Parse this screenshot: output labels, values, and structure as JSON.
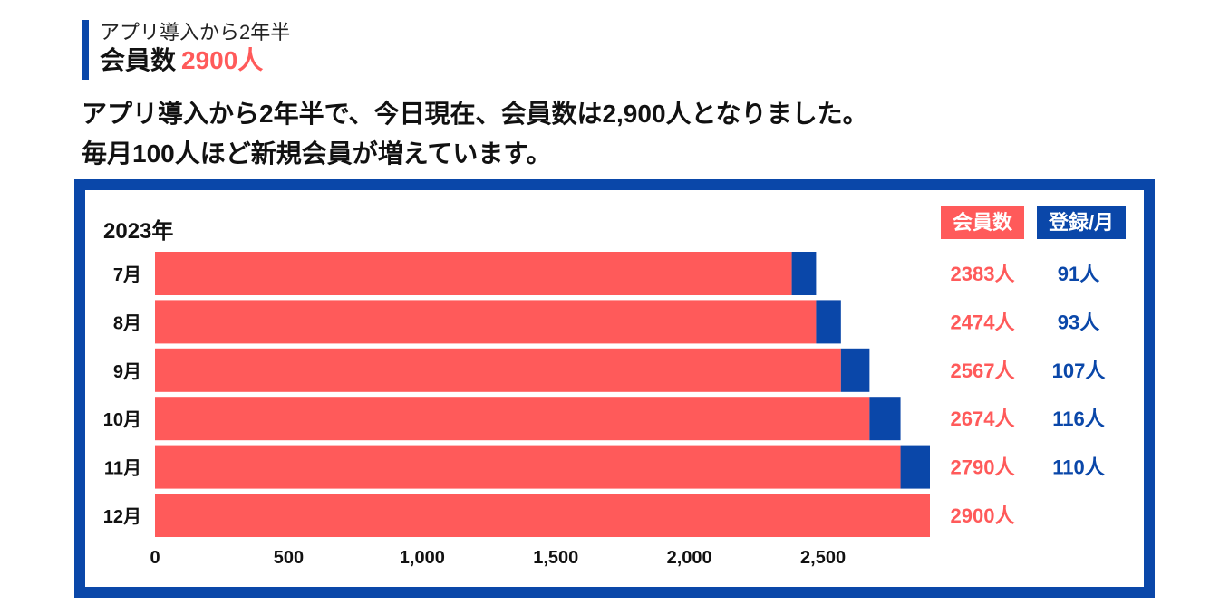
{
  "header": {
    "subtitle": "アプリ導入から2年半",
    "headline_label": "会員数",
    "headline_value": "2900人"
  },
  "lead": {
    "line1": "アプリ導入から2年半で、今日現在、会員数は2,900人となりました。",
    "line2": "毎月100人ほど新規会員が増えています。"
  },
  "colors": {
    "accent_blue": "#0a47a9",
    "members_red": "#ff5a5a"
  },
  "chart_data": {
    "type": "bar",
    "orientation": "horizontal",
    "stacked": true,
    "title": "2023年",
    "categories": [
      "7月",
      "8月",
      "9月",
      "10月",
      "11月",
      "12月"
    ],
    "series": [
      {
        "name": "会員数",
        "color": "#ff5a5a",
        "values": [
          2383,
          2474,
          2567,
          2674,
          2790,
          2900
        ]
      },
      {
        "name": "登録/月",
        "color": "#0a47a9",
        "values": [
          91,
          93,
          107,
          116,
          110,
          null
        ]
      }
    ],
    "member_labels": [
      "2383人",
      "2474人",
      "2567人",
      "2674人",
      "2790人",
      "2900人"
    ],
    "monthly_labels": [
      "91人",
      "93人",
      "107人",
      "116人",
      "110人",
      ""
    ],
    "xlim": [
      0,
      2900
    ],
    "xticks": [
      0,
      500,
      1000,
      1500,
      2000,
      2500
    ],
    "xtick_labels": [
      "0",
      "500",
      "1,000",
      "1,500",
      "2,000",
      "2,500"
    ],
    "legend_position": "top-right",
    "grid": false
  }
}
